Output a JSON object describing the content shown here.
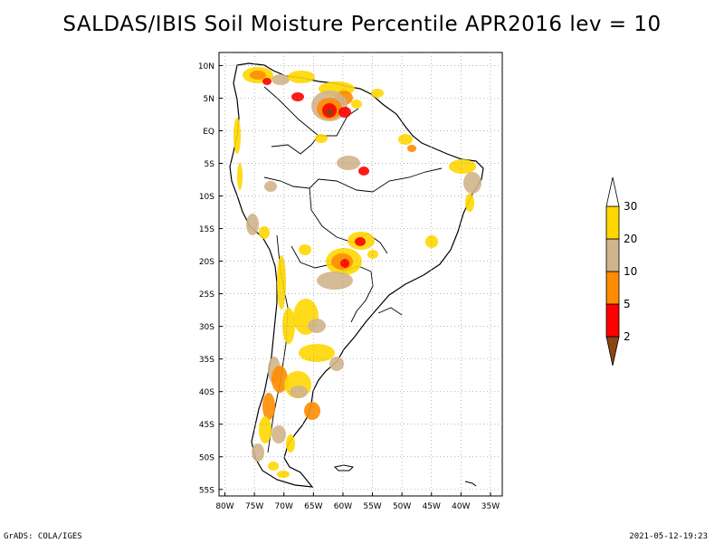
{
  "title": "SALDAS/IBIS Soil Moisture Percentile APR2016 lev = 10",
  "map": {
    "lat_labels": [
      "10N",
      "5N",
      "EQ",
      "5S",
      "10S",
      "15S",
      "20S",
      "25S",
      "30S",
      "35S",
      "40S",
      "45S",
      "50S",
      "55S"
    ],
    "lon_labels": [
      "80W",
      "75W",
      "70W",
      "65W",
      "60W",
      "55W",
      "50W",
      "45W",
      "40W",
      "35W"
    ],
    "lat_range": [
      -56,
      12
    ],
    "lon_range": [
      -81,
      -33
    ],
    "grid": true
  },
  "legend": {
    "levels": [
      "2",
      "5",
      "10",
      "20",
      "30"
    ],
    "colors": {
      "below_2": "#8b4513",
      "2_5": "#ff0000",
      "5_10": "#ff8c00",
      "10_20": "#d2b48c",
      "20_30": "#ffd700",
      "above_30": "#ffffff"
    }
  },
  "footer": {
    "left": "GrADS: COLA/IGES",
    "right": "2021-05-12-19:23"
  }
}
